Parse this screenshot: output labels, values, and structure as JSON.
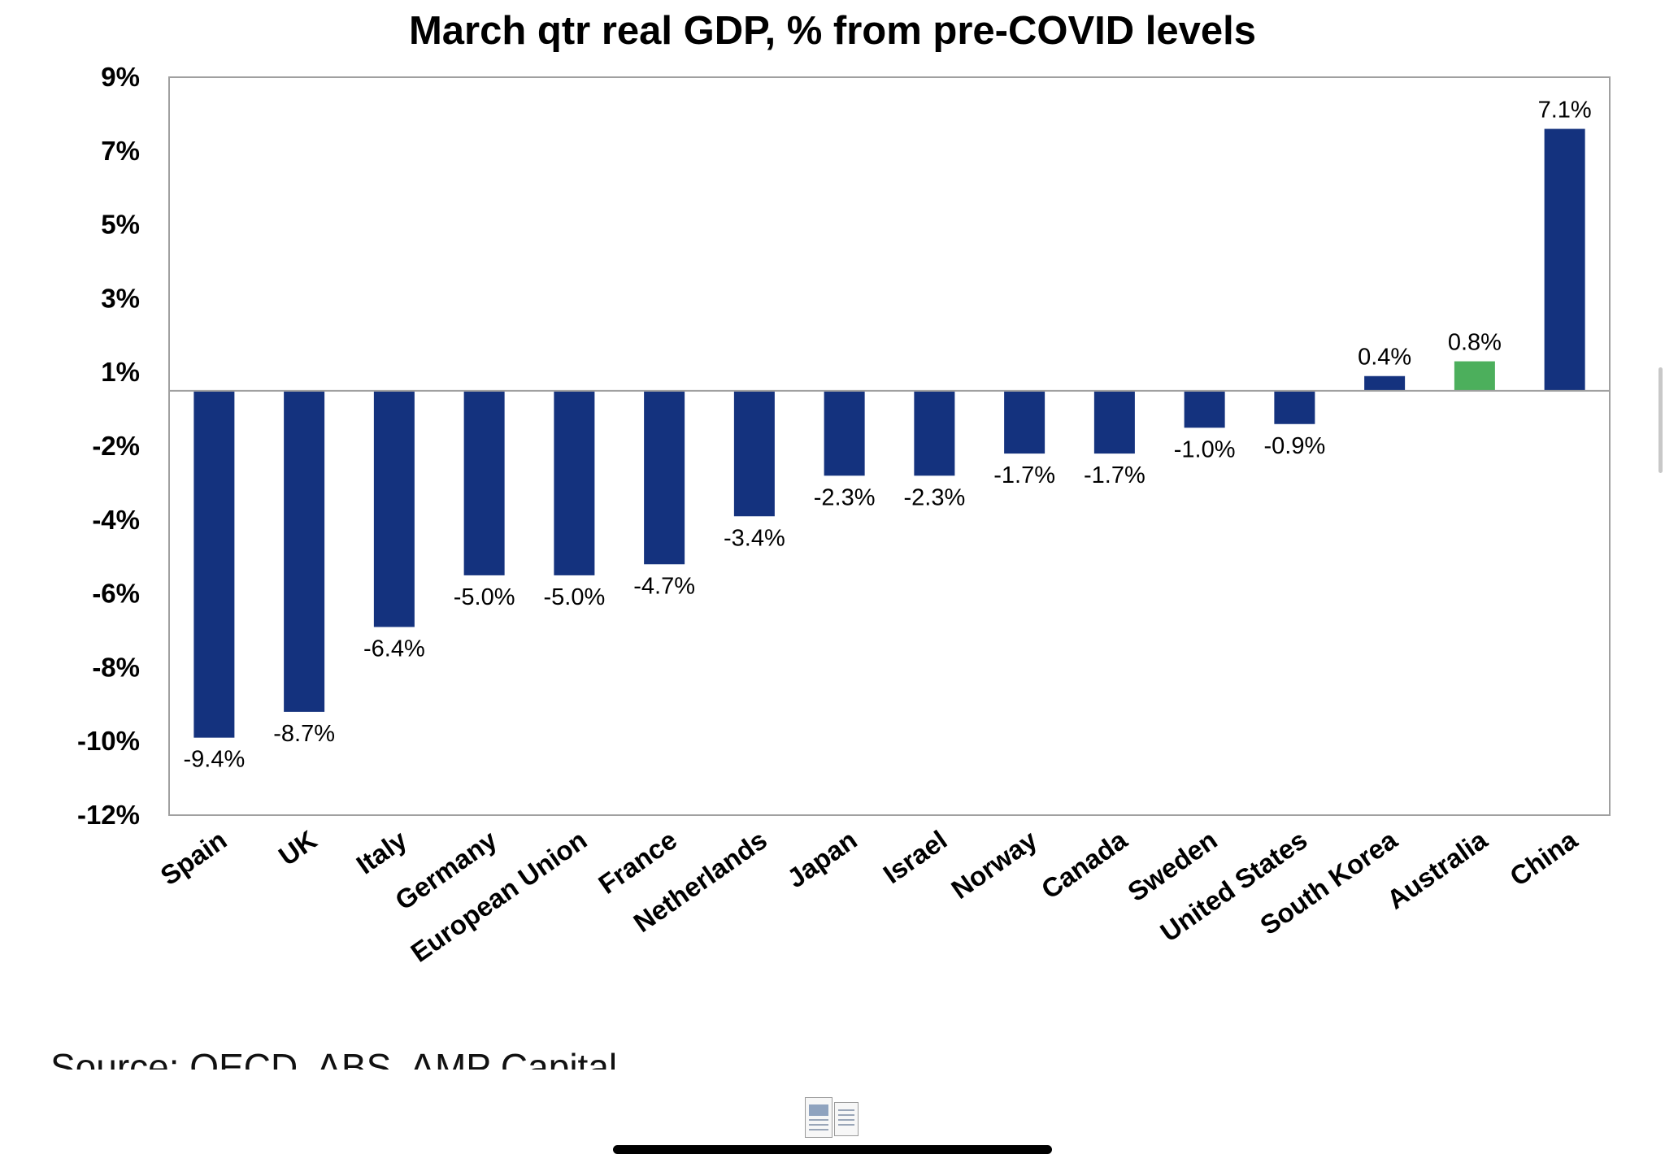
{
  "chart_data": {
    "type": "bar",
    "title": "March qtr real GDP, % from pre-COVID levels",
    "xlabel": "",
    "ylabel": "",
    "categories": [
      "Spain",
      "UK",
      "Italy",
      "Germany",
      "European Union",
      "France",
      "Netherlands",
      "Japan",
      "Israel",
      "Norway",
      "Canada",
      "Sweden",
      "United States",
      "South Korea",
      "Australia",
      "China"
    ],
    "values": [
      -9.4,
      -8.7,
      -6.4,
      -5.0,
      -5.0,
      -4.7,
      -3.4,
      -2.3,
      -2.3,
      -1.7,
      -1.7,
      -1.0,
      -0.9,
      0.4,
      0.8,
      7.1
    ],
    "data_labels": [
      "-9.4%",
      "-8.7%",
      "-6.4%",
      "-5.0%",
      "-5.0%",
      "-4.7%",
      "-3.4%",
      "-2.3%",
      "-2.3%",
      "-1.7%",
      "-1.7%",
      "-1.0%",
      "-0.9%",
      "0.4%",
      "0.8%",
      "7.1%"
    ],
    "y_tick_labels": [
      "9%",
      "7%",
      "5%",
      "3%",
      "1%",
      "-2%",
      "-4%",
      "-6%",
      "-8%",
      "-10%",
      "-12%"
    ],
    "ylim": [
      -11.5,
      8.5
    ],
    "grid": false,
    "legend": "none",
    "bar_color": "#14327e",
    "highlight_category": "Australia",
    "highlight_color": "#4caf5c",
    "axis_color": "#a0a0a0"
  },
  "source": "Source: OECD, ABS, AMP Capital"
}
